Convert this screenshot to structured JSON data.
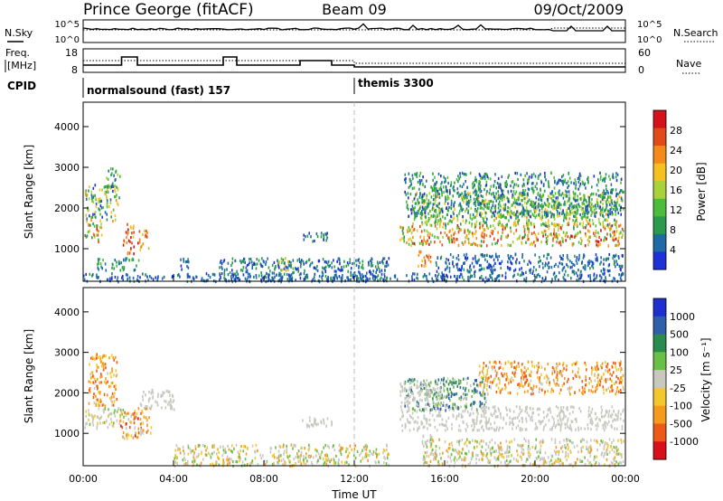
{
  "header": {
    "station": "Prince George (fitACF)",
    "beam": "Beam 09",
    "date": "09/Oct/2009"
  },
  "noise_panel": {
    "left_label": "N.Sky",
    "right_label": "N.Search",
    "left_ticks": [
      "10^5",
      "10^0"
    ],
    "right_ticks": [
      "10^5",
      "10^0"
    ]
  },
  "freq_panel": {
    "left_label_line1": "Freq.",
    "left_label_line2": "[MHz]",
    "right_label": "Nave",
    "left_ticks": [
      "18",
      "8"
    ],
    "right_ticks": [
      "60",
      "0"
    ]
  },
  "cpid_panel": {
    "label": "CPID",
    "segments": [
      {
        "text": "normalsound (fast) 157",
        "start_hour": 0
      },
      {
        "text": "themis 3300",
        "start_hour": 12
      }
    ]
  },
  "colors": {
    "power": [
      "#1e30d8",
      "#1d6aa6",
      "#2a9a4c",
      "#4bbd3a",
      "#a9d23a",
      "#f5c020",
      "#f58a1a",
      "#e24a1a",
      "#d4121a"
    ],
    "velocity": [
      "#1e2fd0",
      "#2f5faa",
      "#2a8c4c",
      "#6bbf44",
      "#c8c8c0",
      "#f2c82c",
      "#f59a1c",
      "#ee5a16",
      "#d8101a"
    ],
    "ground": "#c8c8c0"
  },
  "chart_data": [
    {
      "type": "heatmap",
      "name": "power",
      "ylabel": "Slant Range [km]",
      "yticks": [
        "1000",
        "2000",
        "3000",
        "4000"
      ],
      "ylim": [
        200,
        4600
      ],
      "xlim": [
        0,
        24
      ],
      "colorbar_label": "Power [dB]",
      "colorbar_ticks": [
        "4",
        "8",
        "12",
        "16",
        "20",
        "24",
        "28"
      ],
      "clim": [
        0,
        32
      ],
      "regions": [
        {
          "t": [
            0.05,
            0.8
          ],
          "r": [
            1150,
            1650
          ],
          "v": [
            8,
            30
          ]
        },
        {
          "t": [
            0.05,
            1.6
          ],
          "r": [
            1700,
            2600
          ],
          "v": [
            2,
            22
          ]
        },
        {
          "t": [
            1.0,
            1.6
          ],
          "r": [
            2500,
            3000
          ],
          "v": [
            4,
            18
          ]
        },
        {
          "t": [
            1.75,
            2.25
          ],
          "r": [
            900,
            1650
          ],
          "v": [
            18,
            32
          ]
        },
        {
          "t": [
            2.4,
            2.9
          ],
          "r": [
            1000,
            1500
          ],
          "v": [
            16,
            30
          ]
        },
        {
          "t": [
            0.6,
            2.5
          ],
          "r": [
            500,
            800
          ],
          "v": [
            4,
            14
          ]
        },
        {
          "t": [
            4.2,
            4.7
          ],
          "r": [
            500,
            800
          ],
          "v": [
            2,
            8
          ]
        },
        {
          "t": [
            8.6,
            9.3
          ],
          "r": [
            500,
            800
          ],
          "v": [
            10,
            22
          ]
        },
        {
          "t": [
            9.7,
            10.8
          ],
          "r": [
            1200,
            1450
          ],
          "v": [
            2,
            10
          ]
        },
        {
          "t": [
            6.0,
            13.5
          ],
          "r": [
            220,
            800
          ],
          "v": [
            2,
            10
          ]
        },
        {
          "t": [
            0.0,
            16.0
          ],
          "r": [
            220,
            420
          ],
          "v": [
            2,
            8
          ]
        },
        {
          "t": [
            14.0,
            23.9
          ],
          "r": [
            1100,
            1650
          ],
          "v": [
            10,
            30
          ]
        },
        {
          "t": [
            14.5,
            23.9
          ],
          "r": [
            1600,
            2400
          ],
          "v": [
            6,
            22
          ]
        },
        {
          "t": [
            14.2,
            23.9
          ],
          "r": [
            1800,
            2900
          ],
          "v": [
            2,
            14
          ]
        },
        {
          "t": [
            14.8,
            15.4
          ],
          "r": [
            600,
            1000
          ],
          "v": [
            16,
            28
          ]
        },
        {
          "t": [
            15.5,
            23.9
          ],
          "r": [
            220,
            900
          ],
          "v": [
            2,
            8
          ]
        }
      ]
    },
    {
      "type": "heatmap",
      "name": "velocity",
      "ylabel": "Slant Range [km]",
      "yticks": [
        "1000",
        "2000",
        "3000",
        "4000"
      ],
      "ylim": [
        200,
        4600
      ],
      "xlim": [
        0,
        24
      ],
      "xlabel": "Time UT",
      "xticks": [
        "00:00",
        "04:00",
        "08:00",
        "12:00",
        "16:00",
        "20:00",
        "00:00"
      ],
      "xtick_hours": [
        0,
        4,
        8,
        12,
        16,
        20,
        24
      ],
      "colorbar_label": "Velocity [m s⁻¹]",
      "colorbar_ticks": [
        "1000",
        "500",
        "100",
        "25",
        "-25",
        "-100",
        "-500",
        "-1000"
      ],
      "regions": [
        {
          "t": [
            0.05,
            1.8
          ],
          "r": [
            1150,
            1650
          ],
          "band": [
            3,
            5
          ],
          "ground": 0.6
        },
        {
          "t": [
            0.2,
            1.5
          ],
          "r": [
            1700,
            3000
          ],
          "band": [
            5,
            7
          ],
          "ground": 0.1
        },
        {
          "t": [
            1.6,
            2.4
          ],
          "r": [
            900,
            1700
          ],
          "band": [
            5,
            8
          ],
          "ground": 0.2
        },
        {
          "t": [
            2.4,
            3.0
          ],
          "r": [
            1000,
            1700
          ],
          "band": [
            5,
            7
          ],
          "ground": 0.3
        },
        {
          "t": [
            2.5,
            4.0
          ],
          "r": [
            1600,
            2100
          ],
          "band": [
            4,
            4
          ],
          "ground": 1.0
        },
        {
          "t": [
            9.5,
            11.0
          ],
          "r": [
            1200,
            1450
          ],
          "band": [
            4,
            4
          ],
          "ground": 1.0
        },
        {
          "t": [
            4.0,
            13.5
          ],
          "r": [
            220,
            750
          ],
          "band": [
            3,
            6
          ],
          "ground": 0.2
        },
        {
          "t": [
            14.0,
            23.9
          ],
          "r": [
            1100,
            1700
          ],
          "band": [
            4,
            4
          ],
          "ground": 0.95
        },
        {
          "t": [
            14.2,
            18.0
          ],
          "r": [
            1600,
            2400
          ],
          "band": [
            1,
            3
          ],
          "ground": 0.2
        },
        {
          "t": [
            17.5,
            23.9
          ],
          "r": [
            2000,
            2800
          ],
          "band": [
            5,
            7
          ],
          "ground": 0.15
        },
        {
          "t": [
            14.0,
            16.0
          ],
          "r": [
            1700,
            2300
          ],
          "band": [
            4,
            4
          ],
          "ground": 0.9
        },
        {
          "t": [
            14.8,
            15.4
          ],
          "r": [
            600,
            1000
          ],
          "band": [
            4,
            4
          ],
          "ground": 1.0
        },
        {
          "t": [
            15.0,
            23.9
          ],
          "r": [
            220,
            900
          ],
          "band": [
            3,
            6
          ],
          "ground": 0.3
        }
      ]
    }
  ]
}
